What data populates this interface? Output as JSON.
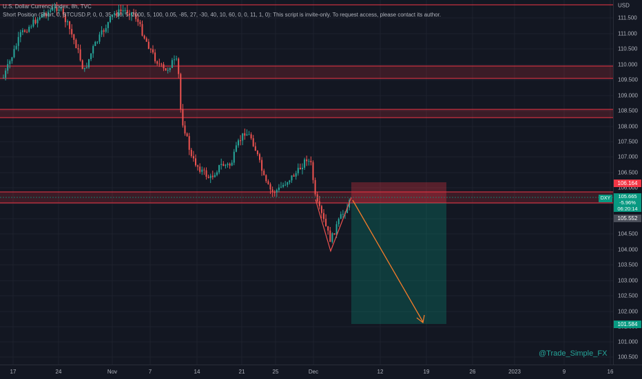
{
  "header": {
    "title": "U.S. Dollar Currency Index, 8h, TVC",
    "indicator": "Short Position (Short, 0, BTCUSD.P, 0, 0, 35, -10, 5, 2000, 5, 100, 0.05, -85, 27, -30, 40, 10, 60, 0, 0, 11, 1, 0): This script is invite-only. To request access, please contact its author."
  },
  "price_axis": {
    "currency": "USD",
    "ticks": [
      "111.500",
      "111.000",
      "110.500",
      "110.000",
      "109.500",
      "109.000",
      "108.500",
      "108.000",
      "107.500",
      "107.000",
      "106.500",
      "106.000",
      "105.500",
      "105.000",
      "104.500",
      "104.000",
      "103.500",
      "103.000",
      "102.500",
      "102.000",
      "101.500",
      "101.000",
      "100.500"
    ]
  },
  "time_axis": {
    "ticks": [
      "17",
      "24",
      "Nov",
      "7",
      "14",
      "21",
      "25",
      "Dec",
      "12",
      "19",
      "26",
      "2023",
      "9",
      "16"
    ]
  },
  "labels": {
    "stop_price": "106.164",
    "current_price": "105.665",
    "change_pct": "-5.96%",
    "countdown": "06:20:14",
    "entry_price": "105.552",
    "target_price": "101.584",
    "symbol": "DXY"
  },
  "colors": {
    "background": "#131722",
    "up": "#26a69a",
    "down": "#ef5350",
    "zone_line": "#f23645",
    "stop_zone": "#f23645",
    "target_zone": "#089981",
    "arrow": "#f57c2a"
  },
  "watermark": "@Trade_Simple_FX"
}
